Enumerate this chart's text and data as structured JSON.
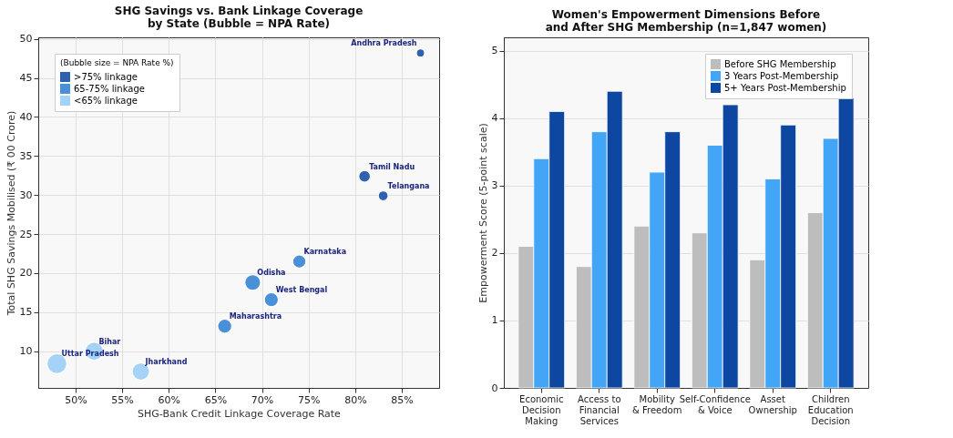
{
  "chart_data": [
    {
      "type": "bubble",
      "title": "SHG Savings vs. Bank Linkage Coverage\nby State (Bubble = NPA Rate)",
      "xlabel": "SHG-Bank Credit Linkage Coverage Rate",
      "ylabel": "Total SHG Savings Mobilised (₹ 00 Crore)",
      "legend_title": "(Bubble size = NPA Rate %)",
      "xlim": [
        46,
        89
      ],
      "xticks": [
        {
          "value": 50,
          "label": "50%"
        },
        {
          "value": 55,
          "label": "55%"
        },
        {
          "value": 60,
          "label": "60%"
        },
        {
          "value": 65,
          "label": "65%"
        },
        {
          "value": 70,
          "label": "70%"
        },
        {
          "value": 75,
          "label": "75%"
        },
        {
          "value": 80,
          "label": "80%"
        },
        {
          "value": 85,
          "label": "85%"
        }
      ],
      "ylim": [
        5.3,
        50.2
      ],
      "yticks": [
        10,
        15,
        20,
        25,
        30,
        35,
        40,
        45,
        50
      ],
      "grid": true,
      "legend": "top left",
      "series": [
        {
          "name": ">75% linkage",
          "color": "#2e62ae",
          "x": [
            87,
            81,
            83
          ],
          "values": [
            48.2,
            32.4,
            29.9
          ],
          "sizes": [
            0.17,
            0.34,
            0.25
          ]
        },
        {
          "name": "65-75% linkage",
          "color": "#4a90d9",
          "x": [
            66,
            69,
            71,
            74
          ],
          "values": [
            13.2,
            18.8,
            16.6,
            21.5
          ],
          "sizes": [
            0.5,
            0.63,
            0.5,
            0.44
          ]
        },
        {
          "name": "<65% linkage",
          "color": "#a5d3f8",
          "x": [
            48,
            52,
            57
          ],
          "values": [
            8.4,
            10.0,
            7.4
          ],
          "sizes": [
            1,
            0.84,
            0.77
          ]
        }
      ],
      "annotations": [
        {
          "text": "Andhra Pradesh",
          "x": 87,
          "y": 48.2
        },
        {
          "text": "Tamil Nadu",
          "x": 81,
          "y": 32.4
        },
        {
          "text": "Telangana",
          "x": 83,
          "y": 29.9
        },
        {
          "text": "Karnataka",
          "x": 74,
          "y": 21.5
        },
        {
          "text": "Odisha",
          "x": 69,
          "y": 18.8
        },
        {
          "text": "West Bengal",
          "x": 71,
          "y": 16.6
        },
        {
          "text": "Maharashtra",
          "x": 66,
          "y": 13.2
        },
        {
          "text": "Bihar",
          "x": 52,
          "y": 10.0
        },
        {
          "text": "Uttar Pradesh",
          "x": 48,
          "y": 8.4
        },
        {
          "text": "Jharkhand",
          "x": 57,
          "y": 7.4
        }
      ]
    },
    {
      "type": "bar",
      "title": "Women's Empowerment Dimensions Before\nand After SHG Membership (n=1,847 women)",
      "ylabel": "Empowerment Score (5-point scale)",
      "categories": [
        "Economic Decision Making",
        "Access to Financial Services",
        "Mobility & Freedom",
        "Self-Confidence & Voice",
        "Asset Ownership",
        "Children Education Decision"
      ],
      "ylim": [
        0,
        5.2
      ],
      "yticks": [
        0,
        1,
        2,
        3,
        4,
        5
      ],
      "grid": "y",
      "legend": "top right",
      "series": [
        {
          "name": "Before SHG Membership",
          "color": "#bdbdbd",
          "values": [
            2.1,
            1.8,
            2.4,
            2.3,
            1.9,
            2.6
          ]
        },
        {
          "name": "3 Years Post-Membership",
          "color": "#42a5f5",
          "values": [
            3.4,
            3.8,
            3.2,
            3.6,
            3.1,
            3.7
          ]
        },
        {
          "name": "5+ Years Post-Membership",
          "color": "#0d47a1",
          "values": [
            4.1,
            4.4,
            3.8,
            4.2,
            3.9,
            4.3
          ]
        }
      ]
    }
  ]
}
